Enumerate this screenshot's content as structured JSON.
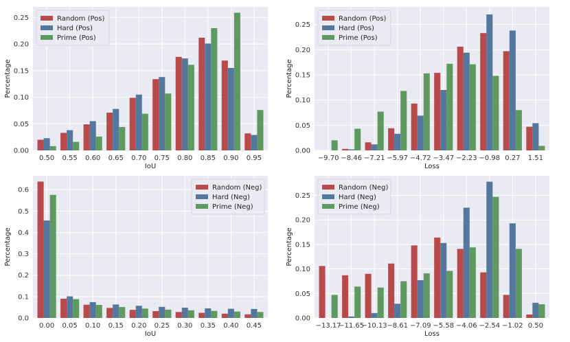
{
  "colors": {
    "random": "#b84a4c",
    "hard": "#53779d",
    "prime": "#5e9a60",
    "plot_bg": "#eaeaf2",
    "grid": "#ffffff"
  },
  "chart_data": [
    {
      "type": "bar",
      "xlabel": "IoU",
      "ylabel": "Percentage",
      "categories": [
        "0.50",
        "0.55",
        "0.60",
        "0.65",
        "0.70",
        "0.75",
        "0.80",
        "0.85",
        "0.90",
        "0.95"
      ],
      "ylim": [
        0,
        0.27
      ],
      "yticks": [
        "0.00",
        "0.05",
        "0.10",
        "0.15",
        "0.20",
        "0.25"
      ],
      "legend_position": "top-left",
      "grid": true,
      "series": [
        {
          "name": "Random (Pos)",
          "values": [
            0.02,
            0.033,
            0.049,
            0.071,
            0.099,
            0.134,
            0.176,
            0.212,
            0.169,
            0.032
          ]
        },
        {
          "name": "Hard (Pos)",
          "values": [
            0.023,
            0.038,
            0.055,
            0.078,
            0.105,
            0.138,
            0.173,
            0.201,
            0.155,
            0.029
          ]
        },
        {
          "name": "Prime (Pos)",
          "values": [
            0.008,
            0.016,
            0.026,
            0.044,
            0.069,
            0.107,
            0.161,
            0.23,
            0.259,
            0.076
          ]
        }
      ]
    },
    {
      "type": "bar",
      "xlabel": "Loss",
      "ylabel": "Percentage",
      "categories": [
        "−9.70",
        "−8.46",
        "−7.21",
        "−5.97",
        "−4.72",
        "−3.47",
        "−2.23",
        "−0.98",
        "0.27",
        "1.51"
      ],
      "ylim": [
        0,
        0.285
      ],
      "yticks": [
        "0.00",
        "0.05",
        "0.10",
        "0.15",
        "0.20",
        "0.25"
      ],
      "legend_position": "top-left",
      "grid": true,
      "series": [
        {
          "name": "Random (Pos)",
          "values": [
            0.0,
            0.003,
            0.016,
            0.044,
            0.093,
            0.154,
            0.206,
            0.233,
            0.197,
            0.047
          ]
        },
        {
          "name": "Hard (Pos)",
          "values": [
            0.0,
            0.002,
            0.012,
            0.033,
            0.069,
            0.12,
            0.194,
            0.27,
            0.238,
            0.054
          ]
        },
        {
          "name": "Prime (Pos)",
          "values": [
            0.02,
            0.043,
            0.077,
            0.118,
            0.153,
            0.172,
            0.171,
            0.148,
            0.08,
            0.009
          ]
        }
      ]
    },
    {
      "type": "bar",
      "xlabel": "IoU",
      "ylabel": "Percentage",
      "categories": [
        "0.00",
        "0.05",
        "0.10",
        "0.15",
        "0.20",
        "0.25",
        "0.30",
        "0.35",
        "0.40",
        "0.45"
      ],
      "ylim": [
        0,
        0.665
      ],
      "yticks": [
        "0.0",
        "0.1",
        "0.2",
        "0.3",
        "0.4",
        "0.5",
        "0.6"
      ],
      "legend_position": "top-right",
      "grid": true,
      "series": [
        {
          "name": "Random (Neg)",
          "values": [
            0.638,
            0.09,
            0.062,
            0.047,
            0.038,
            0.032,
            0.028,
            0.024,
            0.02,
            0.017
          ]
        },
        {
          "name": "Hard (Neg)",
          "values": [
            0.456,
            0.101,
            0.074,
            0.063,
            0.057,
            0.052,
            0.048,
            0.045,
            0.043,
            0.042
          ]
        },
        {
          "name": "Prime (Neg)",
          "values": [
            0.576,
            0.088,
            0.061,
            0.051,
            0.044,
            0.039,
            0.036,
            0.033,
            0.03,
            0.028
          ]
        }
      ]
    },
    {
      "type": "bar",
      "xlabel": "Loss",
      "ylabel": "Percentage",
      "categories": [
        "−13.17",
        "−11.65",
        "−10.13",
        "−8.61",
        "−7.09",
        "−5.58",
        "−4.06",
        "−2.54",
        "−1.02",
        "0.50"
      ],
      "ylim": [
        0,
        0.29
      ],
      "yticks": [
        "0.00",
        "0.05",
        "0.10",
        "0.15",
        "0.20",
        "0.25"
      ],
      "legend_position": "top-left",
      "grid": true,
      "series": [
        {
          "name": "Random (Neg)",
          "values": [
            0.106,
            0.087,
            0.09,
            0.111,
            0.148,
            0.164,
            0.141,
            0.093,
            0.047,
            0.007
          ]
        },
        {
          "name": "Hard (Neg)",
          "values": [
            0.0,
            0.003,
            0.01,
            0.029,
            0.077,
            0.153,
            0.225,
            0.278,
            0.193,
            0.031
          ]
        },
        {
          "name": "Prime (Neg)",
          "values": [
            0.047,
            0.064,
            0.062,
            0.075,
            0.091,
            0.096,
            0.144,
            0.247,
            0.141,
            0.028
          ]
        }
      ]
    }
  ]
}
